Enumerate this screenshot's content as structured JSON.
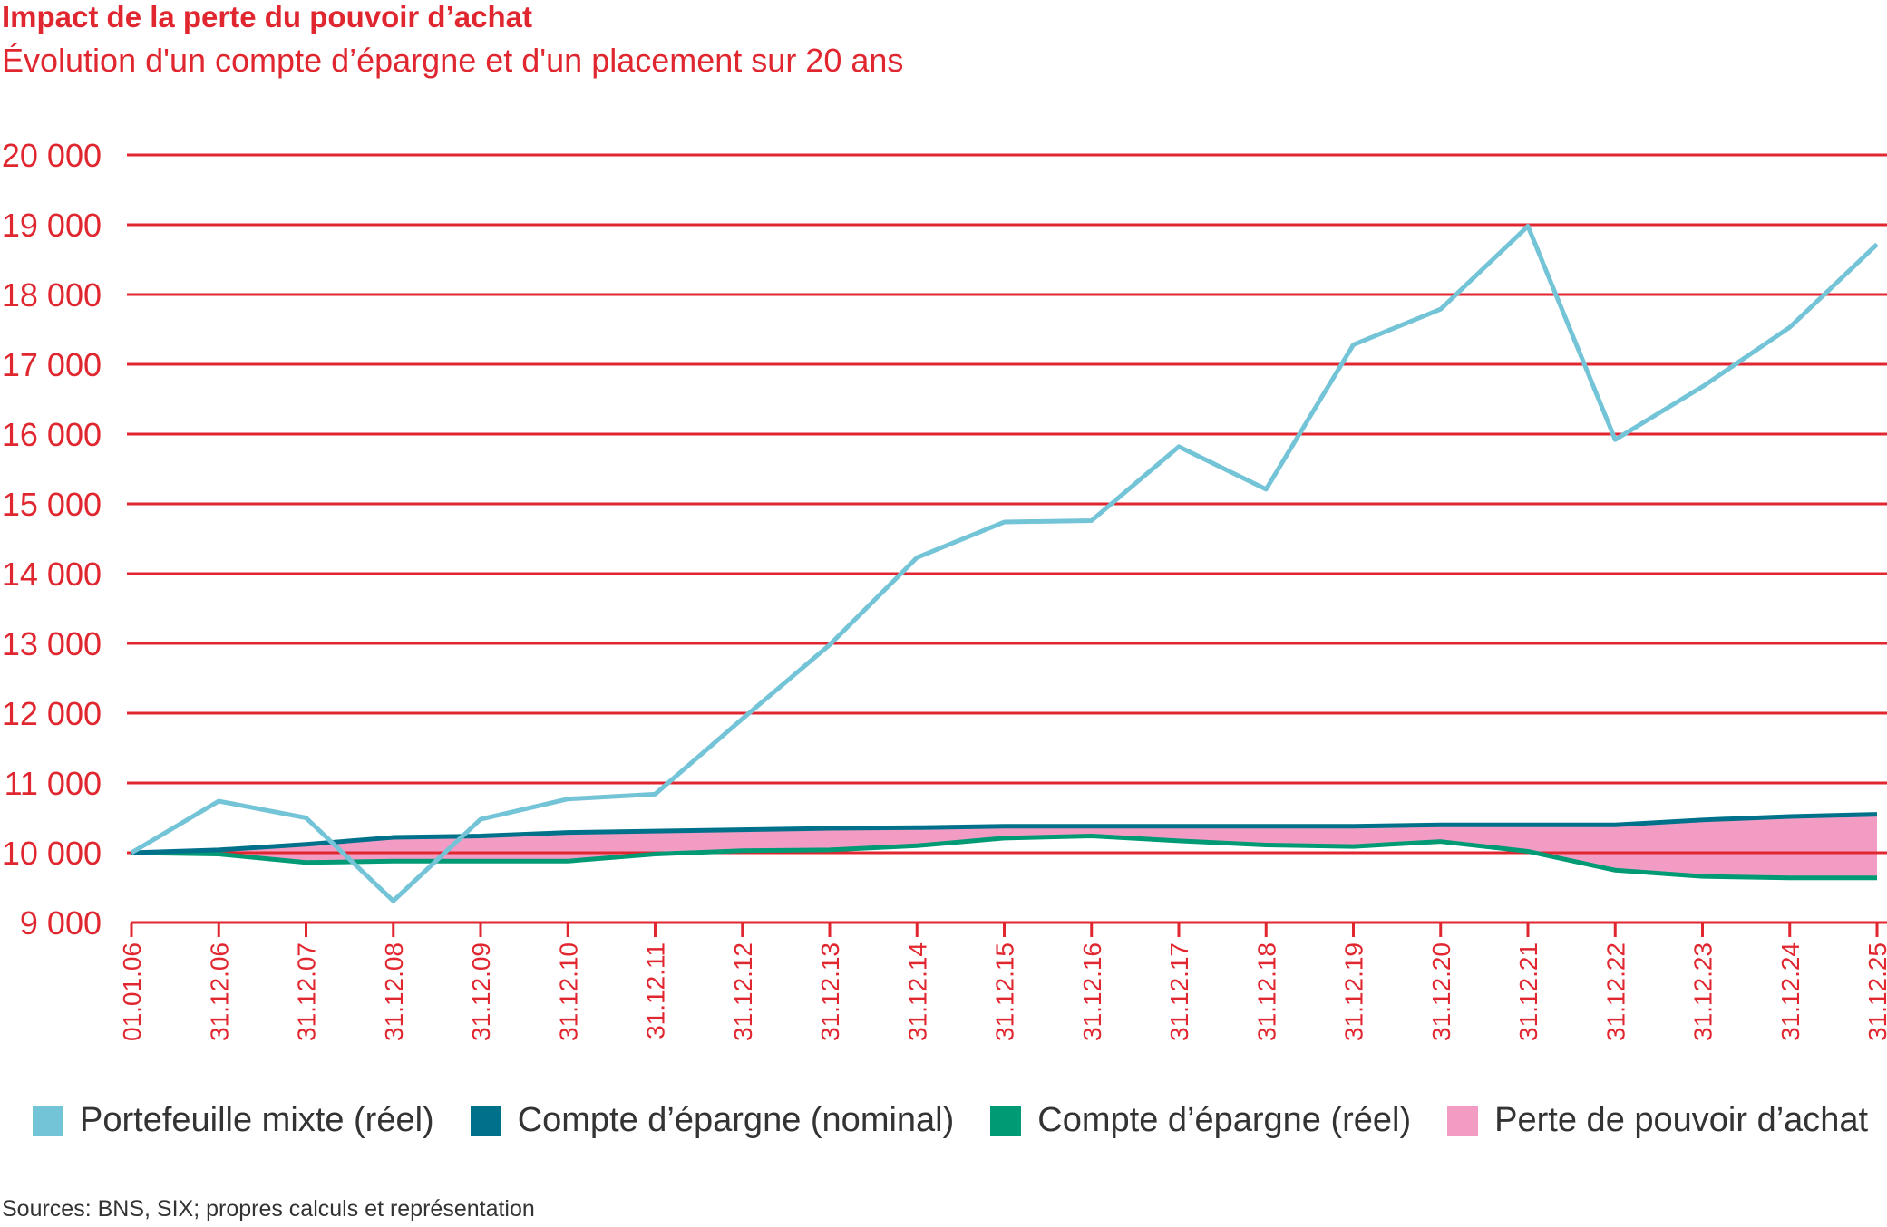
{
  "header": {
    "title": "Impact de la perte du pouvoir d’achat",
    "subtitle": "Évolution d'un compte d’épargne et d'un placement sur 20 ans"
  },
  "source": "Sources: BNS, SIX; propres calculs et représentation",
  "colors": {
    "text": "#e0262f",
    "grid": "#e0262f",
    "portefeuille": "#74c4d8",
    "nominal": "#00718b",
    "reel": "#009a74",
    "perte": "#f29cc4"
  },
  "chart_data": {
    "type": "line",
    "title": "Impact de la perte du pouvoir d’achat",
    "subtitle": "Évolution d'un compte d’épargne et d'un placement sur 20 ans",
    "xlabel": "",
    "ylabel": "",
    "ylim": [
      9000,
      20000
    ],
    "yticks": [
      9000,
      10000,
      11000,
      12000,
      13000,
      14000,
      15000,
      16000,
      17000,
      18000,
      19000,
      20000
    ],
    "ytick_labels": [
      "9 000",
      "10 000",
      "11 000",
      "12 000",
      "13 000",
      "14 000",
      "15 000",
      "16 000",
      "17 000",
      "18 000",
      "19 000",
      "20 000"
    ],
    "categories": [
      "01.01.06",
      "31.12.06",
      "31.12.07",
      "31.12.08",
      "31.12.09",
      "31.12.10",
      "31.12.11",
      "31.12.12",
      "31.12.13",
      "31.12.14",
      "31.12.15",
      "31.12.16",
      "31.12.17",
      "31.12.18",
      "31.12.19",
      "31.12.20",
      "31.12.21",
      "31.12.22",
      "31.12.23",
      "31.12.24",
      "31.12.25"
    ],
    "grid": true,
    "legend_position": "bottom",
    "series": [
      {
        "name": "Portefeuille mixte (réel)",
        "values": [
          10000,
          10740,
          10500,
          9310,
          10480,
          10770,
          10840,
          11920,
          12980,
          14230,
          14740,
          14760,
          15820,
          15210,
          17280,
          17790,
          18980,
          15920,
          16680,
          17530,
          18720
        ]
      },
      {
        "name": "Compte d’épargne (nominal)",
        "values": [
          10000,
          10040,
          10120,
          10220,
          10240,
          10290,
          10310,
          10330,
          10350,
          10360,
          10380,
          10380,
          10380,
          10380,
          10380,
          10400,
          10400,
          10400,
          10470,
          10520,
          10550
        ]
      },
      {
        "name": "Compte d’épargne (réel)",
        "values": [
          10000,
          9980,
          9860,
          9880,
          9880,
          9880,
          9980,
          10030,
          10040,
          10100,
          10210,
          10240,
          10170,
          10110,
          10090,
          10160,
          10020,
          9750,
          9660,
          9640,
          9640
        ]
      }
    ],
    "area": {
      "name": "Perte de pouvoir d’achat",
      "between": [
        "Compte d’épargne (nominal)",
        "Compte d’épargne (réel)"
      ]
    }
  },
  "legend": [
    {
      "label": "Portefeuille mixte (réel)",
      "color": "#74c4d8"
    },
    {
      "label": "Compte d’épargne (nominal)",
      "color": "#00718b"
    },
    {
      "label": "Compte d’épargne (réel)",
      "color": "#009a74"
    },
    {
      "label": "Perte de pouvoir d’achat",
      "color": "#f29cc4"
    }
  ]
}
